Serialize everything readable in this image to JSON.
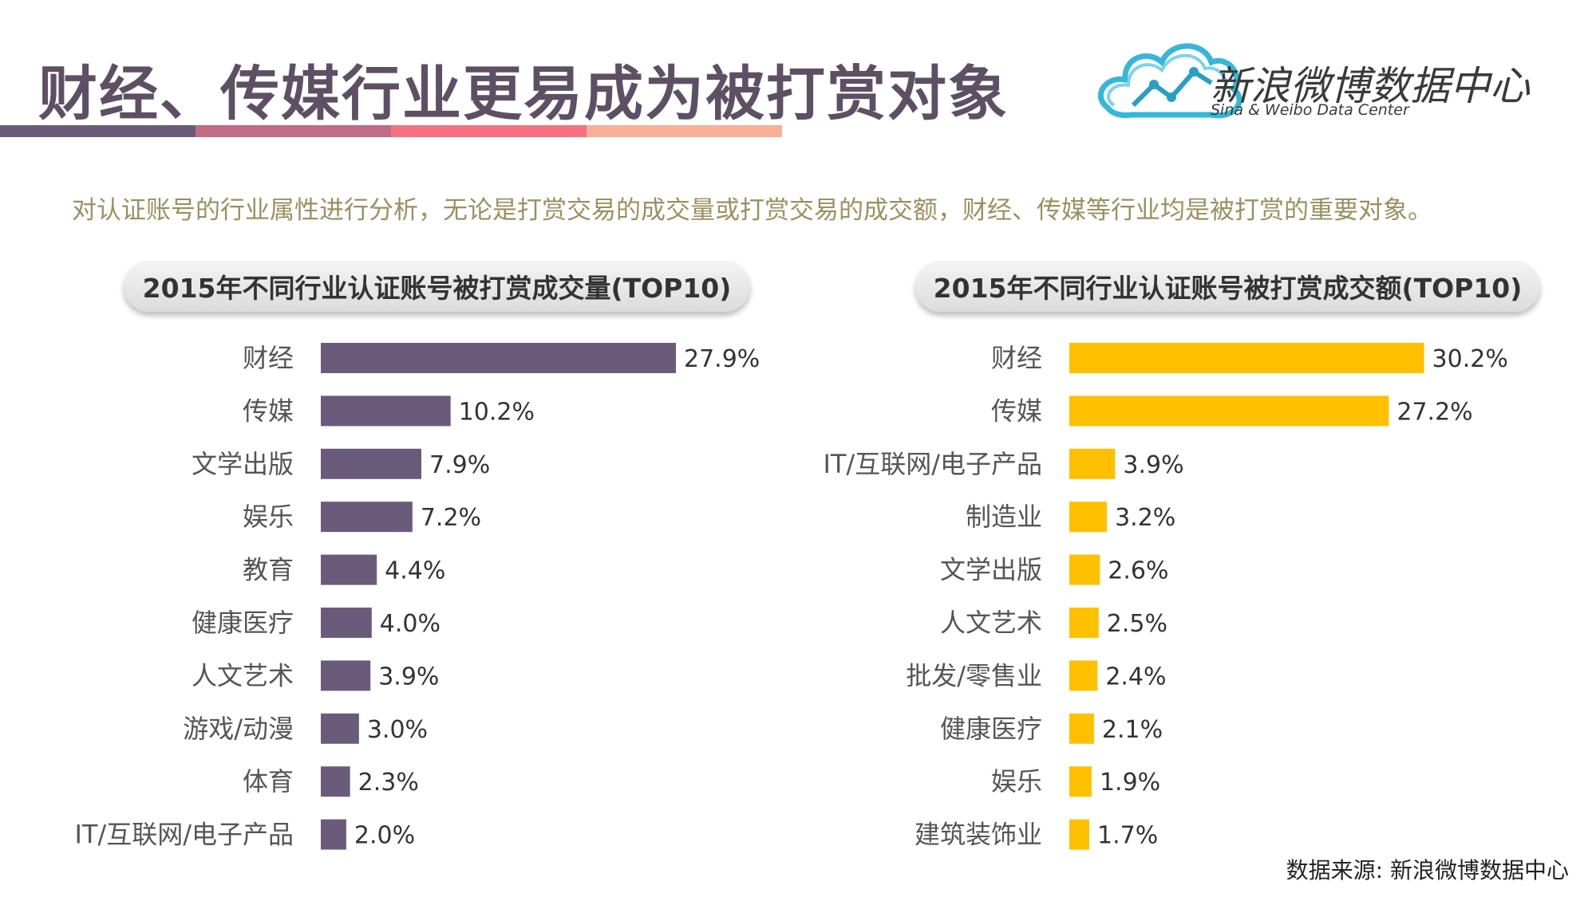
{
  "header": {
    "title": "财经、传媒行业更易成为被打赏对象",
    "stripe_colors": [
      "#6b5b7b",
      "#c06c84",
      "#f67280",
      "#f8b195"
    ]
  },
  "logo": {
    "name_cn": "新浪微博数据中心",
    "name_en": "Sina & Weibo Data Center",
    "icon": "cloud-chart-icon"
  },
  "description": "对认证账号的行业属性进行分析，无论是打赏交易的成交量或打赏交易的成交额，财经、传媒等行业均是被打赏的重要对象。",
  "source": "数据来源: 新浪微博数据中心",
  "chart_data": [
    {
      "type": "bar",
      "orientation": "horizontal",
      "title": "2015年不同行业认证账号被打赏成交量(TOP10)",
      "color": "#6b5b7b",
      "categories": [
        "财经",
        "传媒",
        "文学出版",
        "娱乐",
        "教育",
        "健康医疗",
        "人文艺术",
        "游戏/动漫",
        "体育",
        "IT/互联网/电子产品"
      ],
      "values": [
        27.9,
        10.2,
        7.9,
        7.2,
        4.4,
        4.0,
        3.9,
        3.0,
        2.3,
        2.0
      ],
      "labels": [
        "27.9%",
        "10.2%",
        "7.9%",
        "7.2%",
        "4.4%",
        "4.0%",
        "3.9%",
        "3.0%",
        "2.3%",
        "2.0%"
      ],
      "unit": "%"
    },
    {
      "type": "bar",
      "orientation": "horizontal",
      "title": "2015年不同行业认证账号被打赏成交额(TOP10)",
      "color": "#ffc000",
      "categories": [
        "财经",
        "传媒",
        "IT/互联网/电子产品",
        "制造业",
        "文学出版",
        "人文艺术",
        "批发/零售业",
        "健康医疗",
        "娱乐",
        "建筑装饰业"
      ],
      "values": [
        30.2,
        27.2,
        3.9,
        3.2,
        2.6,
        2.5,
        2.4,
        2.1,
        1.9,
        1.7
      ],
      "labels": [
        "30.2%",
        "27.2%",
        "3.9%",
        "3.2%",
        "2.6%",
        "2.5%",
        "2.4%",
        "2.1%",
        "1.9%",
        "1.7%"
      ],
      "unit": "%"
    }
  ]
}
